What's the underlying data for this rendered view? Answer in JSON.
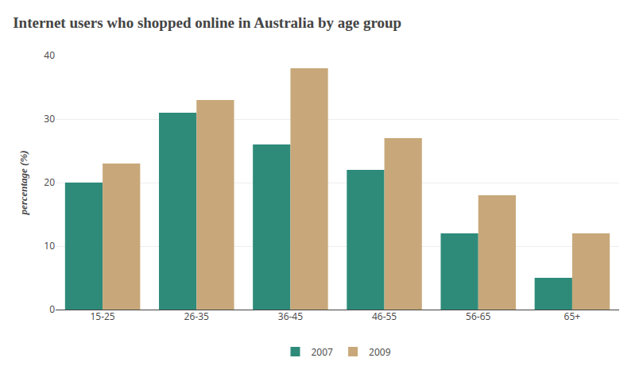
{
  "chart_data": {
    "type": "bar",
    "title": "Internet users who shopped online in Australia by age group",
    "ylabel": "percentage (%)",
    "categories": [
      "15-25",
      "26-35",
      "36-45",
      "46-55",
      "56-65",
      "65+"
    ],
    "series": [
      {
        "name": "2007",
        "color": "#2e8b7a",
        "values": [
          20,
          31,
          26,
          22,
          12,
          5
        ]
      },
      {
        "name": "2009",
        "color": "#c8a87a",
        "values": [
          23,
          33,
          38,
          27,
          18,
          12
        ]
      }
    ],
    "ylim": [
      0,
      40
    ],
    "yticks": [
      0,
      10,
      20,
      30,
      40
    ],
    "grid": true,
    "legend": "bottom"
  }
}
